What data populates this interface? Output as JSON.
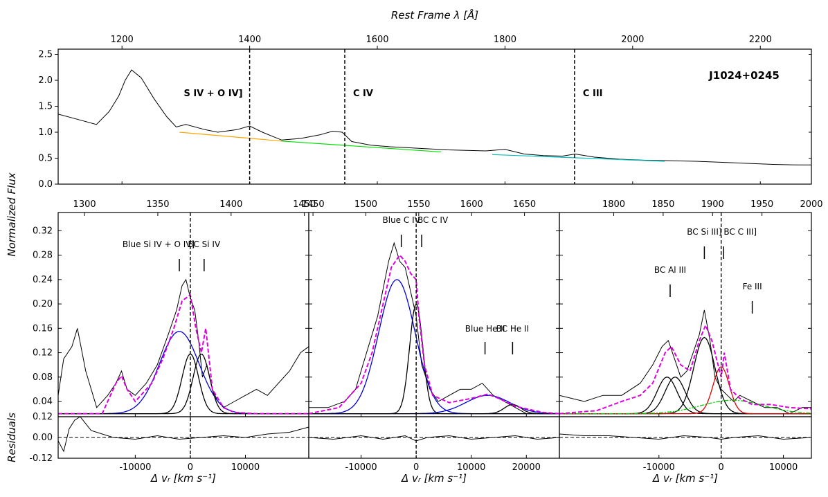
{
  "figure": {
    "object_label": "J1024+0245",
    "ylabel_left": "Normalized Flux",
    "ylabel_residuals": "Residuals"
  },
  "chart_data": [
    {
      "type": "line",
      "name": "top-spectrum",
      "title": "Rest Frame λ [Å]",
      "xlabel": "Rest Frame λ [Å]",
      "xlim": [
        1100,
        2280
      ],
      "ylim": [
        0,
        2.6
      ],
      "xticks": [
        "1200",
        "1400",
        "1600",
        "1800",
        "2000",
        "2200"
      ],
      "xtick_values": [
        1200,
        1400,
        1600,
        1800,
        2000,
        2200
      ],
      "yticks": [
        "0.0",
        "0.5",
        "1.0",
        "1.5",
        "2.0",
        "2.5"
      ],
      "ytick_values": [
        0,
        0.5,
        1.0,
        1.5,
        2.0,
        2.5
      ],
      "vlines": [
        {
          "x": 1400,
          "label": "S IV + O IV]"
        },
        {
          "x": 1549,
          "label": "C IV"
        },
        {
          "x": 1909,
          "label": "C III"
        }
      ],
      "series": [
        {
          "name": "spectrum",
          "color": "#000000",
          "x": [
            1100,
            1130,
            1160,
            1180,
            1195,
            1205,
            1215,
            1230,
            1250,
            1270,
            1285,
            1300,
            1330,
            1350,
            1380,
            1400,
            1420,
            1450,
            1480,
            1510,
            1530,
            1545,
            1560,
            1590,
            1620,
            1650,
            1680,
            1710,
            1740,
            1770,
            1800,
            1830,
            1860,
            1890,
            1910,
            1940,
            1980,
            2020,
            2060,
            2100,
            2140,
            2180,
            2220,
            2260,
            2280
          ],
          "y": [
            1.35,
            1.25,
            1.15,
            1.4,
            1.7,
            2.0,
            2.2,
            2.05,
            1.65,
            1.3,
            1.1,
            1.15,
            1.05,
            1.0,
            1.05,
            1.12,
            1.0,
            0.85,
            0.88,
            0.95,
            1.02,
            1.0,
            0.82,
            0.75,
            0.72,
            0.7,
            0.68,
            0.66,
            0.65,
            0.64,
            0.67,
            0.58,
            0.55,
            0.54,
            0.58,
            0.52,
            0.48,
            0.46,
            0.45,
            0.44,
            0.42,
            0.4,
            0.38,
            0.37,
            0.37
          ]
        },
        {
          "name": "continuum-1",
          "color": "#ffa500",
          "x": [
            1290,
            1450
          ],
          "y": [
            1.0,
            0.83
          ]
        },
        {
          "name": "continuum-2",
          "color": "#00dd00",
          "x": [
            1450,
            1700
          ],
          "y": [
            0.83,
            0.62
          ]
        },
        {
          "name": "continuum-3",
          "color": "#00bfbf",
          "x": [
            1780,
            2050
          ],
          "y": [
            0.57,
            0.44
          ]
        }
      ]
    },
    {
      "type": "line",
      "name": "panel-si-iv",
      "xlabel": "Δ vᵣ [km s⁻¹]",
      "xlim": [
        -24000,
        21500
      ],
      "ylim": [
        0.015,
        0.35
      ],
      "top_axis": {
        "xlim": [
          1282,
          1453
        ],
        "ticks": [
          "1300",
          "1350",
          "1400",
          "1450"
        ],
        "tick_values": [
          1300,
          1350,
          1400,
          1450
        ]
      },
      "xticks": [
        "-10000",
        "0",
        "10000"
      ],
      "xtick_values": [
        -10000,
        0,
        10000
      ],
      "yticks": [
        "0.04",
        "0.08",
        "0.12",
        "0.16",
        "0.20",
        "0.24",
        "0.28",
        "0.32"
      ],
      "ytick_values": [
        0.04,
        0.08,
        0.12,
        0.16,
        0.2,
        0.24,
        0.28,
        0.32
      ],
      "annotations": [
        {
          "label": "Blue Si IV + O IV]",
          "x": -2000
        },
        {
          "label": "BC Si IV",
          "x": 2500
        }
      ],
      "components": [
        {
          "name": "blue-component",
          "color": "#0000dd",
          "amp": 0.135,
          "center": -2000,
          "sigma": 3600
        },
        {
          "name": "bc-1",
          "color": "#000000",
          "amp": 0.098,
          "center": 0,
          "sigma": 1500
        },
        {
          "name": "bc-2",
          "color": "#000000",
          "amp": 0.098,
          "center": 2000,
          "sigma": 1500
        }
      ],
      "total_fit": {
        "color": "#dd00dd",
        "x": [
          -24000,
          -16000,
          -13500,
          -12500,
          -11500,
          -10000,
          -7000,
          -5000,
          -3000,
          -1500,
          0,
          1000,
          2000,
          2800,
          4000,
          6000,
          8000,
          12000,
          16000,
          21500
        ],
        "y": [
          0.02,
          0.02,
          0.07,
          0.082,
          0.06,
          0.04,
          0.07,
          0.11,
          0.16,
          0.205,
          0.215,
          0.16,
          0.12,
          0.16,
          0.06,
          0.03,
          0.022,
          0.02,
          0.02,
          0.02
        ]
      },
      "spectrum": {
        "color": "#000000",
        "x": [
          -24000,
          -23000,
          -21500,
          -20500,
          -19000,
          -17000,
          -15000,
          -13500,
          -12500,
          -11500,
          -10000,
          -8000,
          -6000,
          -4000,
          -2500,
          -1500,
          -800,
          0,
          800,
          1500,
          2200,
          3000,
          4000,
          5000,
          6000,
          8000,
          10000,
          12000,
          14000,
          16000,
          18000,
          20000,
          21500
        ],
        "y": [
          0.05,
          0.11,
          0.13,
          0.16,
          0.09,
          0.03,
          0.05,
          0.07,
          0.09,
          0.06,
          0.05,
          0.07,
          0.1,
          0.15,
          0.19,
          0.23,
          0.24,
          0.21,
          0.19,
          0.14,
          0.08,
          0.1,
          0.06,
          0.04,
          0.03,
          0.04,
          0.05,
          0.06,
          0.05,
          0.07,
          0.09,
          0.12,
          0.13
        ]
      },
      "residuals": {
        "ylim": [
          -0.12,
          0.12
        ],
        "yticks": [
          "-0.12",
          "0.00",
          "0.12"
        ],
        "ytick_values": [
          -0.12,
          0,
          0.12
        ],
        "x": [
          -24000,
          -23000,
          -22000,
          -21000,
          -20000,
          -18000,
          -14000,
          -10000,
          -6000,
          -2000,
          2000,
          6000,
          10000,
          14000,
          18000,
          21500
        ],
        "y": [
          -0.02,
          -0.08,
          0.05,
          0.1,
          0.12,
          0.04,
          0.0,
          -0.01,
          0.01,
          -0.01,
          0.0,
          0.01,
          0.0,
          0.02,
          0.03,
          0.06
        ]
      }
    },
    {
      "type": "line",
      "name": "panel-c-iv",
      "xlabel": "Δ vᵣ [km s⁻¹]",
      "xlim": [
        -19500,
        26000
      ],
      "ylim": [
        0.015,
        0.35
      ],
      "top_axis": {
        "xlim": [
          1446,
          1683
        ],
        "ticks": [
          "1450",
          "1500",
          "1550",
          "1600",
          "1650"
        ],
        "tick_values": [
          1450,
          1500,
          1550,
          1600,
          1650
        ]
      },
      "xticks": [
        "-10000",
        "0",
        "10000",
        "20000"
      ],
      "xtick_values": [
        -10000,
        0,
        10000,
        20000
      ],
      "annotations": [
        {
          "label": "Blue C IV",
          "x": -2700
        },
        {
          "label": "BC C IV",
          "x": 1000
        },
        {
          "label": "Blue He II",
          "x": 12500
        },
        {
          "label": "BC He II",
          "x": 17500
        }
      ],
      "components": [
        {
          "name": "blue-c-iv",
          "color": "#0000dd",
          "amp": 0.22,
          "center": -3500,
          "sigma": 3300
        },
        {
          "name": "bc-c-iv",
          "color": "#000000",
          "amp": 0.18,
          "center": 0,
          "sigma": 1200
        },
        {
          "name": "blue-he-ii",
          "color": "#0000dd",
          "amp": 0.03,
          "center": 13000,
          "sigma": 4000
        },
        {
          "name": "bc-he-ii",
          "color": "#000000",
          "amp": 0.015,
          "center": 17500,
          "sigma": 1500
        }
      ],
      "total_fit": {
        "color": "#dd00dd",
        "x": [
          -19500,
          -14000,
          -10000,
          -8000,
          -6000,
          -4500,
          -3000,
          -2000,
          -1000,
          0,
          500,
          1500,
          3000,
          6000,
          10000,
          13000,
          15000,
          18000,
          20000,
          23000,
          26000
        ],
        "y": [
          0.02,
          0.03,
          0.07,
          0.12,
          0.2,
          0.26,
          0.28,
          0.27,
          0.25,
          0.24,
          0.18,
          0.1,
          0.05,
          0.038,
          0.045,
          0.052,
          0.045,
          0.032,
          0.028,
          0.022,
          0.02
        ]
      },
      "spectrum": {
        "color": "#000000",
        "x": [
          -19500,
          -16000,
          -13000,
          -11000,
          -9000,
          -7000,
          -5000,
          -4000,
          -3000,
          -2000,
          -1000,
          0,
          1000,
          2500,
          4000,
          6000,
          8000,
          10000,
          12000,
          14000,
          16000,
          18000,
          20000,
          23000,
          26000
        ],
        "y": [
          0.03,
          0.03,
          0.04,
          0.06,
          0.12,
          0.18,
          0.27,
          0.3,
          0.27,
          0.26,
          0.22,
          0.18,
          0.1,
          0.06,
          0.04,
          0.05,
          0.06,
          0.06,
          0.07,
          0.05,
          0.04,
          0.03,
          0.02,
          0.02,
          0.02
        ]
      },
      "residuals": {
        "ylim": [
          -0.12,
          0.12
        ],
        "x": [
          -19500,
          -15000,
          -10000,
          -6000,
          -2000,
          0,
          2000,
          6000,
          10000,
          14000,
          18000,
          22000,
          26000
        ],
        "y": [
          0.0,
          -0.01,
          0.01,
          -0.01,
          0.01,
          -0.02,
          0.0,
          0.01,
          -0.01,
          0.0,
          0.01,
          -0.01,
          0.0
        ]
      }
    },
    {
      "type": "line",
      "name": "panel-c-iii",
      "xlabel": "Δ vᵣ [km s⁻¹]",
      "xlim": [
        -26000,
        14500
      ],
      "ylim": [
        0.015,
        0.35
      ],
      "top_axis": {
        "xlim": [
          1745,
          2000
        ],
        "ticks": [
          "1800",
          "1850",
          "1900",
          "1950",
          "2000"
        ],
        "tick_values": [
          1800,
          1850,
          1900,
          1950,
          2000
        ]
      },
      "xticks": [
        "-10000",
        "0",
        "10000"
      ],
      "xtick_values": [
        -10000,
        0,
        10000
      ],
      "annotations": [
        {
          "label": "BC Si III]",
          "x": -2700
        },
        {
          "label": "BC C III]",
          "x": 400
        },
        {
          "label": "BC Al III",
          "x": -8200
        },
        {
          "label": "Fe III",
          "x": 5000
        }
      ],
      "components": [
        {
          "name": "bc-al-iii-a",
          "color": "#000000",
          "amp": 0.06,
          "center": -8700,
          "sigma": 1600
        },
        {
          "name": "bc-al-iii-b",
          "color": "#000000",
          "amp": 0.06,
          "center": -7400,
          "sigma": 1600
        },
        {
          "name": "bc-si-iii",
          "color": "#000000",
          "amp": 0.125,
          "center": -2700,
          "sigma": 1700
        },
        {
          "name": "bc-c-iii",
          "color": "#dd0000",
          "amp": 0.077,
          "center": 0,
          "sigma": 1300
        },
        {
          "name": "fe-iii",
          "color": "#00cc00",
          "amp": 0.022,
          "center": 1800,
          "sigma": 5000
        }
      ],
      "total_fit": {
        "color": "#dd00dd",
        "x": [
          -26000,
          -20000,
          -16000,
          -13000,
          -11000,
          -9000,
          -8000,
          -6500,
          -5000,
          -3500,
          -2500,
          -1500,
          -500,
          0,
          500,
          1500,
          3000,
          5000,
          8000,
          11000,
          14500
        ],
        "y": [
          0.02,
          0.025,
          0.04,
          0.05,
          0.07,
          0.12,
          0.13,
          0.1,
          0.09,
          0.14,
          0.165,
          0.14,
          0.1,
          0.08,
          0.12,
          0.06,
          0.045,
          0.035,
          0.035,
          0.03,
          0.028
        ]
      },
      "spectrum": {
        "color": "#000000",
        "x": [
          -26000,
          -22000,
          -19000,
          -16000,
          -13000,
          -11000,
          -9500,
          -8500,
          -7500,
          -6500,
          -5500,
          -4500,
          -3500,
          -2700,
          -1800,
          -1000,
          0,
          1000,
          2000,
          3000,
          5000,
          7000,
          9000,
          11000,
          13000,
          14500
        ],
        "y": [
          0.05,
          0.04,
          0.05,
          0.05,
          0.07,
          0.1,
          0.13,
          0.14,
          0.11,
          0.08,
          0.09,
          0.12,
          0.15,
          0.19,
          0.14,
          0.08,
          0.06,
          0.05,
          0.04,
          0.05,
          0.04,
          0.03,
          0.03,
          0.02,
          0.03,
          0.03
        ]
      },
      "residuals": {
        "ylim": [
          -0.12,
          0.12
        ],
        "x": [
          -26000,
          -22000,
          -18000,
          -14000,
          -10000,
          -6000,
          -2000,
          0,
          2000,
          6000,
          10000,
          14500
        ],
        "y": [
          0.02,
          0.01,
          0.01,
          0.0,
          -0.01,
          0.01,
          0.0,
          -0.01,
          0.0,
          0.01,
          -0.01,
          0.0
        ]
      }
    }
  ]
}
